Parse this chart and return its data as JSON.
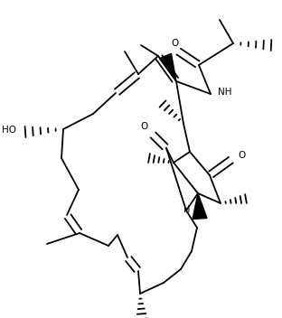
{
  "background": "#ffffff",
  "line_color": "#000000",
  "lw": 1.3,
  "fig_width": 3.12,
  "fig_height": 3.52,
  "dpi": 100,
  "xlim": [
    0,
    312
  ],
  "ylim": [
    0,
    352
  ]
}
